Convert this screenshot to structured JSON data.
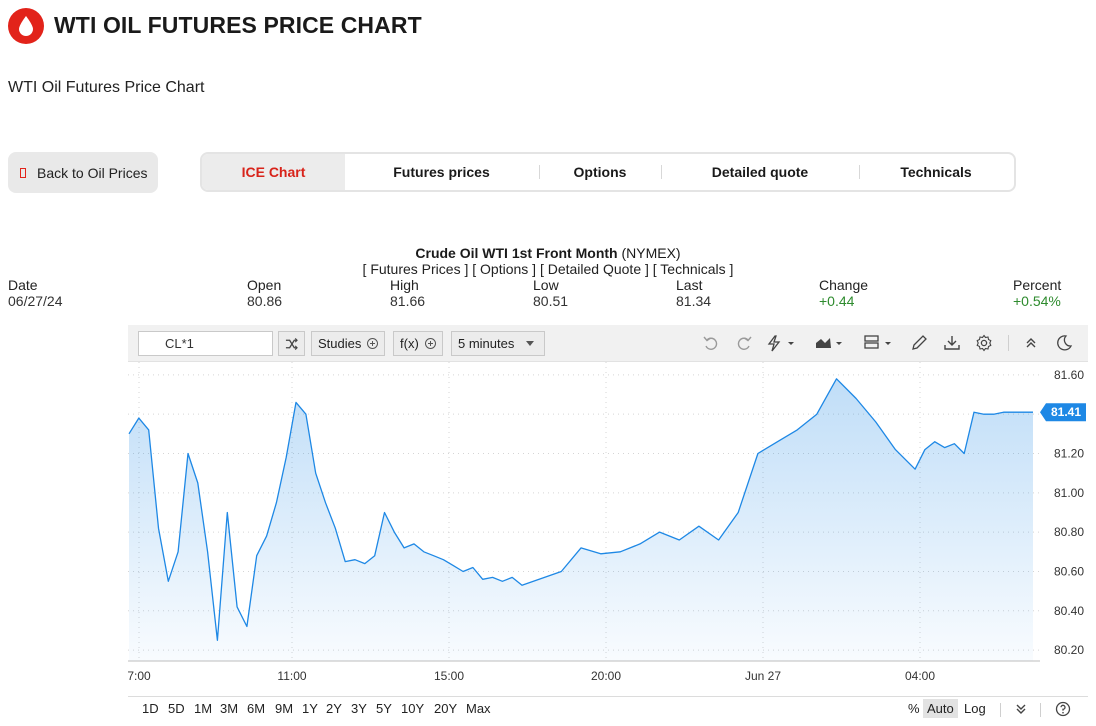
{
  "header": {
    "title": "WTI OIL FUTURES PRICE CHART",
    "subtitle": "WTI Oil Futures Price Chart"
  },
  "back_button": {
    "label": "Back to Oil Prices",
    "icon": "back-icon"
  },
  "tabs": [
    {
      "label": "ICE Chart",
      "active": true
    },
    {
      "label": "Futures prices",
      "active": false
    },
    {
      "label": "Options",
      "active": false
    },
    {
      "label": "Detailed quote",
      "active": false
    },
    {
      "label": "Technicals",
      "active": false
    }
  ],
  "instrument": {
    "name": "Crude Oil WTI 1st Front Month",
    "exchange": "(NYMEX)",
    "links": "[ Futures Prices ] [ Options ] [ Detailed Quote ] [ Technicals ]"
  },
  "stats": [
    {
      "label": "Date",
      "value": "06/27/24"
    },
    {
      "label": "Open",
      "value": "80.86"
    },
    {
      "label": "High",
      "value": "81.66"
    },
    {
      "label": "Low",
      "value": "80.51"
    },
    {
      "label": "Last",
      "value": "81.34"
    },
    {
      "label": "Change",
      "value": "+0.44"
    },
    {
      "label": "Percent",
      "value": "+0.54%"
    }
  ],
  "toolbar": {
    "symbol": "CL*1",
    "studies_label": "Studies",
    "fx_label": "f(x)",
    "interval_label": "5 minutes"
  },
  "ranges": {
    "periods": [
      "1D",
      "5D",
      "1M",
      "3M",
      "6M",
      "9M",
      "1Y",
      "2Y",
      "3Y",
      "5Y",
      "10Y",
      "20Y",
      "Max"
    ],
    "percent": "%",
    "auto": "Auto",
    "log": "Log"
  },
  "colors": {
    "brand": "#e2231a",
    "line": "#1e88e5",
    "positive": "#2e8b2e",
    "price_tag": "#1e88e5"
  },
  "chart_data": {
    "type": "area",
    "title": "",
    "x_tick_labels": [
      "7:00",
      "11:00",
      "15:00",
      "20:00",
      "Jun 27",
      "04:00"
    ],
    "y_tick_labels": [
      "81.60",
      "81.40",
      "81.20",
      "81.00",
      "80.80",
      "80.60",
      "80.40",
      "80.20"
    ],
    "ylim": [
      80.17,
      81.64
    ],
    "last_price_label": "81.41",
    "x": [
      "07:00",
      "07:15",
      "07:30",
      "07:45",
      "08:00",
      "08:15",
      "08:30",
      "08:45",
      "09:00",
      "09:15",
      "09:30",
      "09:45",
      "10:00",
      "10:15",
      "10:30",
      "10:45",
      "11:00",
      "11:15",
      "11:30",
      "11:45",
      "12:00",
      "12:15",
      "12:30",
      "12:45",
      "13:00",
      "13:15",
      "13:30",
      "13:45",
      "14:00",
      "14:15",
      "14:30",
      "14:45",
      "15:00",
      "15:15",
      "15:30",
      "15:45",
      "16:00",
      "16:15",
      "16:30",
      "16:45",
      "17:00",
      "18:00",
      "18:30",
      "19:00",
      "19:30",
      "20:00",
      "20:30",
      "21:00",
      "21:30",
      "22:00",
      "22:30",
      "23:00",
      "23:30",
      "00:00",
      "00:30",
      "01:00",
      "01:30",
      "02:00",
      "02:30",
      "03:00",
      "03:15",
      "03:30",
      "03:45",
      "04:00",
      "04:15",
      "04:30",
      "04:45",
      "05:00",
      "05:15",
      "05:30",
      "05:45",
      "06:00"
    ],
    "values": [
      81.3,
      81.38,
      81.32,
      80.82,
      80.55,
      80.7,
      81.2,
      81.05,
      80.7,
      80.25,
      80.9,
      80.42,
      80.32,
      80.68,
      80.78,
      80.95,
      81.18,
      81.46,
      81.4,
      81.1,
      80.95,
      80.82,
      80.65,
      80.66,
      80.64,
      80.68,
      80.9,
      80.8,
      80.72,
      80.74,
      80.7,
      80.68,
      80.66,
      80.63,
      80.6,
      80.62,
      80.56,
      80.57,
      80.55,
      80.57,
      80.53,
      80.6,
      80.72,
      80.69,
      80.7,
      80.74,
      80.8,
      80.76,
      80.83,
      80.76,
      80.9,
      81.2,
      81.26,
      81.32,
      81.4,
      81.58,
      81.48,
      81.36,
      81.22,
      81.12,
      81.22,
      81.26,
      81.23,
      81.25,
      81.2,
      81.41,
      81.4,
      81.4,
      81.41,
      81.41,
      81.41,
      81.41
    ],
    "grid": true
  }
}
